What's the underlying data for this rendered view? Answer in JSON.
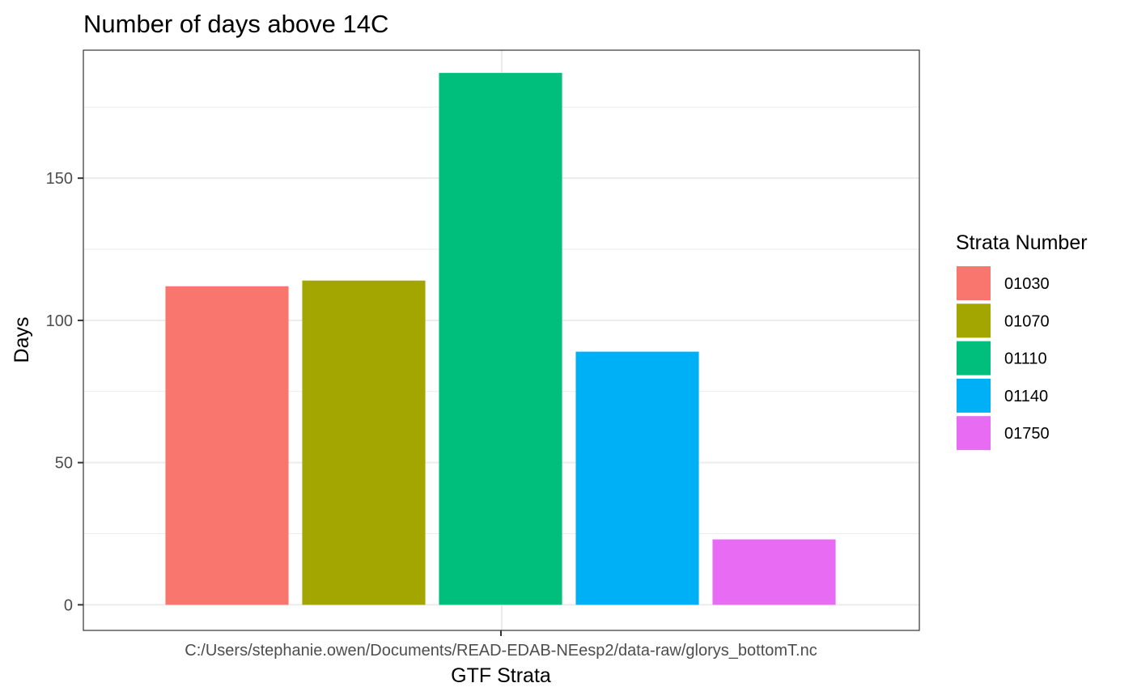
{
  "chart_data": {
    "type": "bar",
    "title": "Number of days above 14C",
    "xlabel": "GTF Strata",
    "ylabel": "Days",
    "x_tick_label": "C:/Users/stephanie.owen/Documents/READ-EDAB-NEesp2/data-raw/glorys_bottomT.nc",
    "y_ticks": [
      0,
      50,
      100,
      150
    ],
    "ylim": [
      -9,
      195
    ],
    "grid": true,
    "legend": {
      "title": "Strata Number",
      "position": "right"
    },
    "series": [
      {
        "name": "01030",
        "value": 112,
        "color": "#F8766D"
      },
      {
        "name": "01070",
        "value": 114,
        "color": "#A3A500"
      },
      {
        "name": "01110",
        "value": 187,
        "color": "#00BF7D"
      },
      {
        "name": "01140",
        "value": 89,
        "color": "#00B0F6"
      },
      {
        "name": "01750",
        "value": 23,
        "color": "#E76BF3"
      }
    ]
  }
}
